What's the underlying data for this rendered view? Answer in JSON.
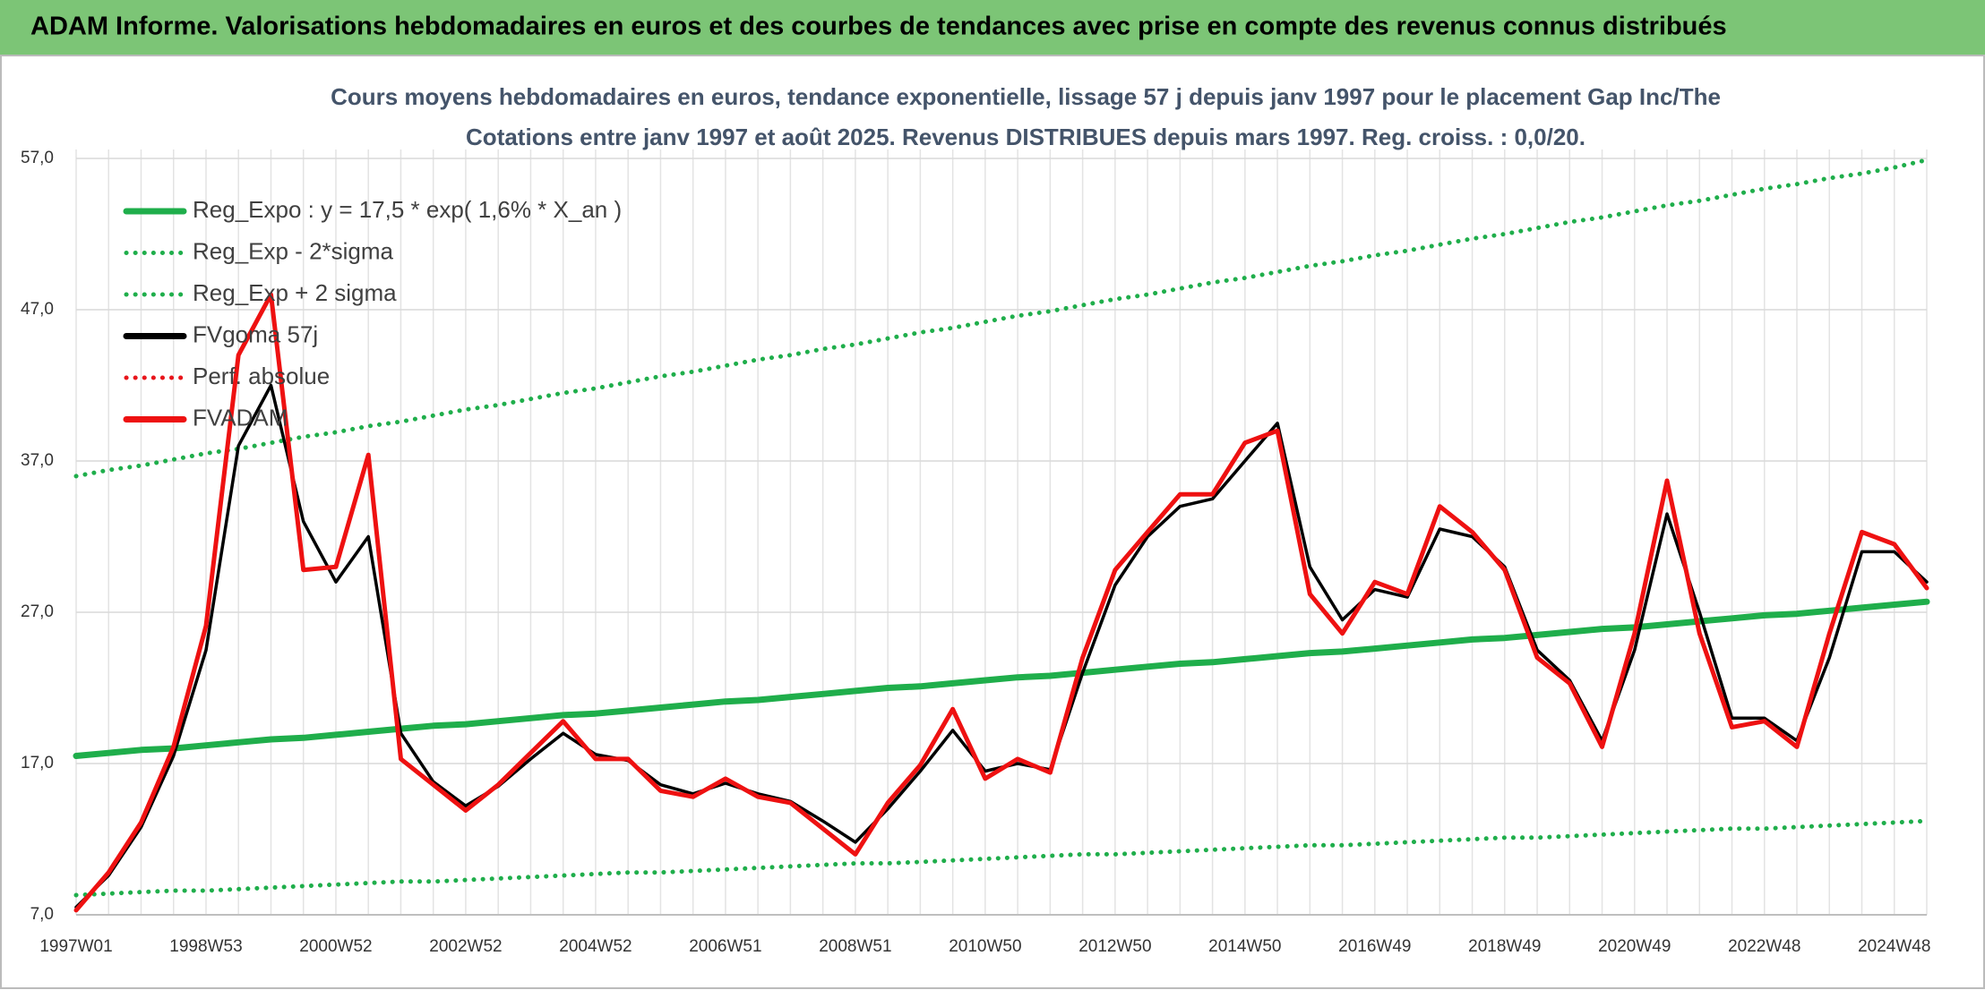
{
  "header": {
    "title": "ADAM Informe. Valorisations hebdomadaires en euros et des courbes de tendances avec prise en compte des revenus connus distribués"
  },
  "chart_data": {
    "type": "line",
    "title": [
      "Cours moyens hebdomadaires en euros, tendance exponentielle, lissage 57 j depuis janv 1997 pour le placement Gap Inc/The",
      "Cotations entre janv 1997 et août 2025. Revenus DISTRIBUES depuis mars 1997. Reg. croiss. : 0,0/20."
    ],
    "categories": [
      "1997W01",
      null,
      null,
      null,
      "1998W53",
      null,
      null,
      null,
      "2000W52",
      null,
      null,
      null,
      "2002W52",
      null,
      null,
      null,
      "2004W52",
      null,
      null,
      null,
      "2006W51",
      null,
      null,
      null,
      "2008W51",
      null,
      null,
      null,
      "2010W50",
      null,
      null,
      null,
      "2012W50",
      null,
      null,
      null,
      "2014W50",
      null,
      null,
      null,
      "2016W49",
      null,
      null,
      null,
      "2018W49",
      null,
      null,
      null,
      "2020W49",
      null,
      null,
      null,
      "2022W48",
      null,
      null,
      null,
      "2024W48",
      null
    ],
    "ylim": [
      7,
      57
    ],
    "yticks": [
      {
        "value": 7,
        "label": "7,0"
      },
      {
        "value": 17,
        "label": "17,0"
      },
      {
        "value": 27,
        "label": "27,0"
      },
      {
        "value": 37,
        "label": "37,0"
      },
      {
        "value": 47,
        "label": "47,0"
      },
      {
        "value": 57,
        "label": "57,0"
      }
    ],
    "grid": true,
    "legend": "top-left",
    "series": [
      {
        "name": "Reg_Expo : y = 17,5 * exp( 1,6% *  X_an )",
        "color": "#1fae4b",
        "dotted": false,
        "values": [
          17.5,
          17.7,
          17.9,
          18.0,
          18.2,
          18.4,
          18.6,
          18.7,
          18.9,
          19.1,
          19.3,
          19.5,
          19.6,
          19.8,
          20.0,
          20.2,
          20.3,
          20.5,
          20.7,
          20.9,
          21.1,
          21.2,
          21.4,
          21.6,
          21.8,
          22.0,
          22.1,
          22.3,
          22.5,
          22.7,
          22.8,
          23.0,
          23.2,
          23.4,
          23.6,
          23.7,
          23.9,
          24.1,
          24.3,
          24.4,
          24.6,
          24.8,
          25.0,
          25.2,
          25.3,
          25.5,
          25.7,
          25.9,
          26.0,
          26.2,
          26.4,
          26.6,
          26.8,
          26.9,
          27.1,
          27.3,
          27.5,
          27.7
        ]
      },
      {
        "name": "Reg_Exp - 2*sigma",
        "color": "#1fae4b",
        "dotted": true,
        "values": [
          8.3,
          8.4,
          8.5,
          8.6,
          8.6,
          8.7,
          8.8,
          8.9,
          9.0,
          9.1,
          9.2,
          9.2,
          9.3,
          9.4,
          9.5,
          9.6,
          9.7,
          9.8,
          9.8,
          9.9,
          10.0,
          10.1,
          10.2,
          10.3,
          10.4,
          10.4,
          10.5,
          10.6,
          10.7,
          10.8,
          10.9,
          11.0,
          11.0,
          11.1,
          11.2,
          11.3,
          11.4,
          11.5,
          11.6,
          11.6,
          11.7,
          11.8,
          11.9,
          12.0,
          12.1,
          12.1,
          12.2,
          12.3,
          12.4,
          12.5,
          12.6,
          12.7,
          12.7,
          12.8,
          12.9,
          13.0,
          13.1,
          13.2
        ]
      },
      {
        "name": "Reg_Exp + 2 sigma",
        "color": "#1fae4b",
        "dotted": true,
        "values": [
          36.0,
          36.4,
          36.7,
          37.1,
          37.5,
          37.8,
          38.2,
          38.6,
          38.9,
          39.3,
          39.6,
          40.0,
          40.4,
          40.7,
          41.1,
          41.5,
          41.8,
          42.2,
          42.6,
          42.9,
          43.3,
          43.7,
          44.0,
          44.4,
          44.7,
          45.1,
          45.5,
          45.8,
          46.2,
          46.6,
          46.9,
          47.3,
          47.7,
          48.0,
          48.4,
          48.8,
          49.1,
          49.5,
          49.9,
          50.2,
          50.6,
          50.9,
          51.3,
          51.7,
          52.0,
          52.4,
          52.8,
          53.1,
          53.5,
          53.9,
          54.2,
          54.6,
          55.0,
          55.3,
          55.7,
          56.0,
          56.4,
          56.9
        ]
      },
      {
        "name": "FVgoma 57j",
        "color": "#000000",
        "dotted": false,
        "values": [
          7.5,
          9.6,
          12.8,
          17.5,
          24.5,
          38,
          42,
          33,
          29,
          32,
          19,
          15.8,
          14.2,
          15.5,
          17.3,
          19,
          17.6,
          17.2,
          15.6,
          15,
          15.7,
          15,
          14.5,
          13.2,
          11.8,
          14,
          16.5,
          19.2,
          16.5,
          17,
          16.6,
          23,
          28.8,
          32,
          34,
          34.5,
          37,
          39.5,
          30,
          26.5,
          28.5,
          28,
          32.5,
          32,
          30,
          24.5,
          22.5,
          18.5,
          24.5,
          33.5,
          27,
          20,
          20,
          18.5,
          24,
          31,
          31,
          29
        ]
      },
      {
        "name": "Perf. absolue",
        "color": "#e8151b",
        "dotted": true
      },
      {
        "name": "FVADAM",
        "color": "#ee1111",
        "dotted": false,
        "values": [
          7.3,
          9.8,
          13.1,
          18.1,
          26.1,
          44,
          48,
          29.8,
          30,
          37.4,
          17.3,
          15.6,
          13.9,
          15.6,
          17.7,
          19.8,
          17.3,
          17.3,
          15.2,
          14.8,
          16.0,
          14.8,
          14.4,
          12.7,
          11.0,
          14.4,
          16.9,
          20.6,
          16.0,
          17.3,
          16.4,
          24.0,
          29.8,
          32.3,
          34.8,
          34.8,
          38.2,
          39.0,
          28.2,
          25.6,
          29.0,
          28.2,
          34.0,
          32.3,
          29.8,
          24.0,
          22.3,
          18.1,
          25.6,
          35.7,
          25.6,
          19.4,
          19.8,
          18.1,
          25.6,
          32.3,
          31.5,
          28.6
        ]
      }
    ]
  }
}
